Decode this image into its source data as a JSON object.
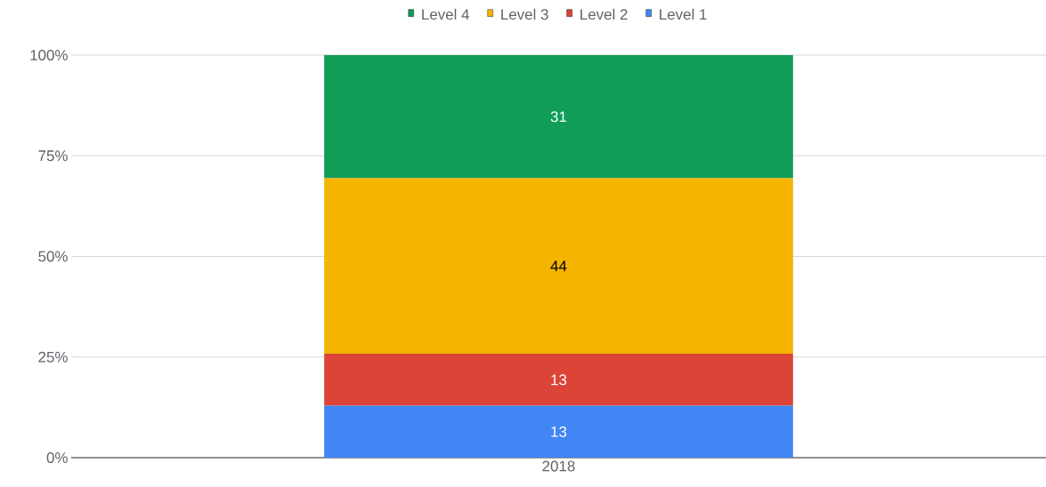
{
  "chart_data": {
    "type": "bar",
    "stacked": true,
    "categories": [
      "2018"
    ],
    "series": [
      {
        "name": "Level 1",
        "color": "#4285f4",
        "values": [
          12.9
        ],
        "value_labels": [
          "13"
        ]
      },
      {
        "name": "Level 2",
        "color": "#db4437",
        "values": [
          12.9
        ],
        "value_labels": [
          "13"
        ]
      },
      {
        "name": "Level 3",
        "color": "#f4b400",
        "values": [
          43.6
        ],
        "value_labels": [
          "44"
        ]
      },
      {
        "name": "Level 4",
        "color": "#0f9d58",
        "values": [
          30.6
        ],
        "value_labels": [
          "31"
        ]
      }
    ],
    "ylim": [
      0,
      100
    ],
    "yticks": [
      {
        "value": 0,
        "label": "0%"
      },
      {
        "value": 25,
        "label": "25%"
      },
      {
        "value": 50,
        "label": "50%"
      },
      {
        "value": 75,
        "label": "75%"
      },
      {
        "value": 100,
        "label": "100%"
      }
    ],
    "grid": "y",
    "legend": "top"
  }
}
